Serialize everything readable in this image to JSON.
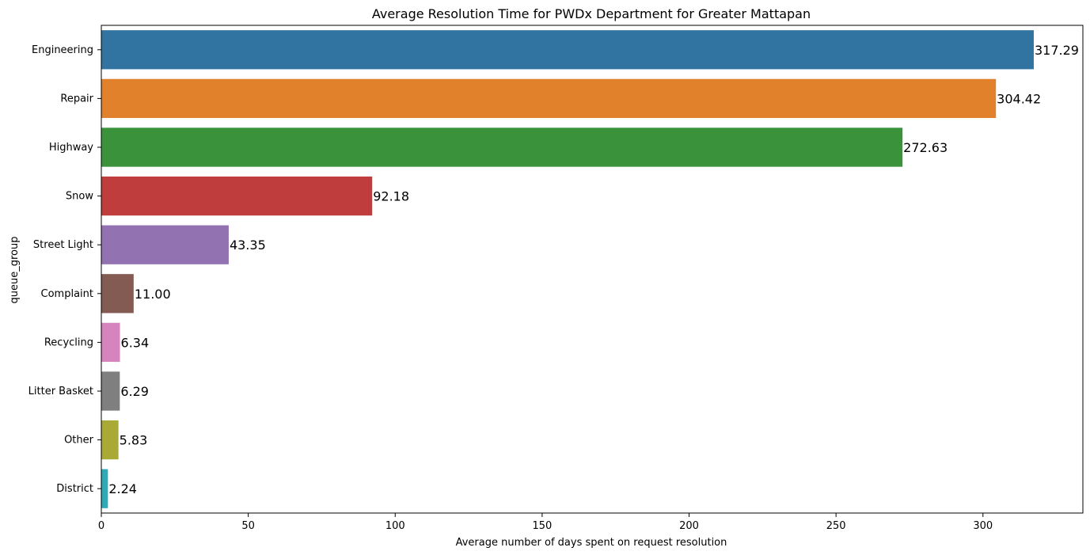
{
  "chart_data": {
    "type": "bar",
    "orientation": "horizontal",
    "title": "Average Resolution Time for PWDx Department for Greater Mattapan",
    "xlabel": "Average number of days spent on request resolution",
    "ylabel": "queue_group",
    "xlim": [
      0,
      334
    ],
    "xticks": [
      0,
      50,
      100,
      150,
      200,
      250,
      300
    ],
    "grid": false,
    "categories": [
      "Engineering",
      "Repair",
      "Highway",
      "Snow",
      "Street Light",
      "Complaint",
      "Recycling",
      "Litter Basket",
      "Other",
      "District"
    ],
    "values": [
      317.29,
      304.42,
      272.63,
      92.18,
      43.35,
      11.0,
      6.34,
      6.29,
      5.83,
      2.24
    ],
    "value_labels": [
      "317.29",
      "304.42",
      "272.63",
      "92.18",
      "43.35",
      "11.00",
      "6.34",
      "6.29",
      "5.83",
      "2.24"
    ],
    "colors": [
      "#3274a1",
      "#e1812c",
      "#3a923a",
      "#c03d3e",
      "#9372b2",
      "#845b53",
      "#d684bd",
      "#7f7f7f",
      "#a9aa35",
      "#2eabb8"
    ]
  }
}
